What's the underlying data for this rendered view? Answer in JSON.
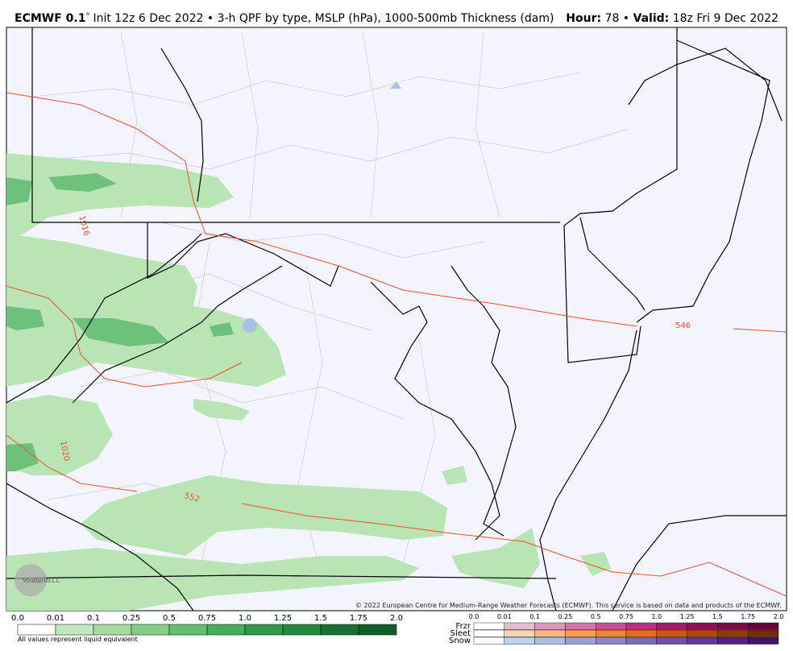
{
  "header": {
    "model": "ECMWF 0.1",
    "degree": "°",
    "description": "Init 12z 6 Dec 2022 • 3-h QPF by type, MSLP (hPa), 1000-500mb Thickness (dam)",
    "hour_label": "Hour:",
    "hour_value": "78 •",
    "valid_label": "Valid:",
    "valid_value": "18z Fri 9 Dec 2022"
  },
  "map": {
    "contour_labels": [
      "1016",
      "1020",
      "552",
      "546"
    ],
    "watermark": "WeatherBELL",
    "credit": "© 2022 European Centre for Medium-Range Weather Forecasts (ECMWF). This service is based on data and products of the ECMWF."
  },
  "legend": {
    "rain_ticks": [
      "0.0",
      "0.01",
      "0.1",
      "0.25",
      "0.5",
      "0.75",
      "1.0",
      "1.25",
      "1.5",
      "1.75",
      "2.0"
    ],
    "note": "All values represent liquid equivalent",
    "types": [
      "Frzr",
      "Sleet",
      "Snow"
    ],
    "type_ticks": [
      "0.0",
      "0.01",
      "0.1",
      "0.25",
      "0.5",
      "0.75",
      "1.0",
      "1.25",
      "1.5",
      "1.75",
      "2.0"
    ]
  }
}
